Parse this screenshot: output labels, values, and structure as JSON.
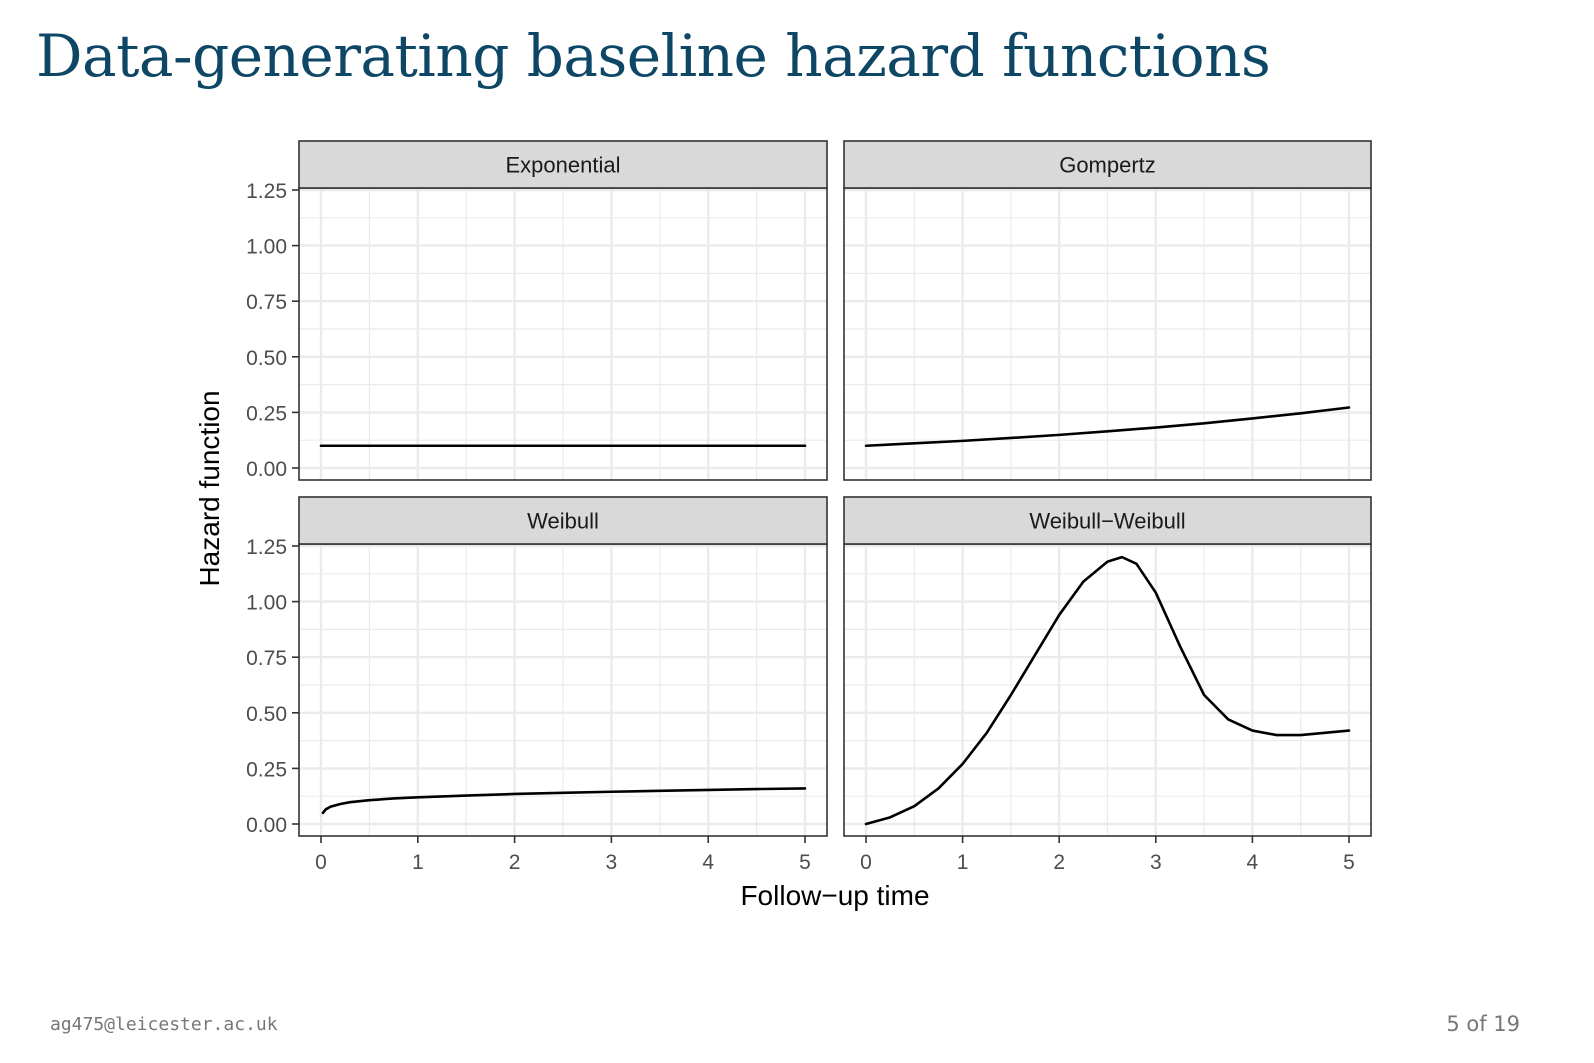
{
  "slide": {
    "title": "Data-generating baseline hazard functions",
    "footer_email": "ag475@leicester.ac.uk",
    "page_label": "5 of 19"
  },
  "chart_data": {
    "type": "line",
    "layout": "facet-grid-2x2",
    "xlabel": "Follow−up time",
    "ylabel": "Hazard function",
    "xlim": [
      0,
      5
    ],
    "ylim": [
      0,
      1.25
    ],
    "x_ticks": [
      "0",
      "1",
      "2",
      "3",
      "4",
      "5"
    ],
    "y_ticks": [
      "0.00",
      "0.25",
      "0.50",
      "0.75",
      "1.00",
      "1.25"
    ],
    "grid": true,
    "line_color": "#000000",
    "strip_fill": "#d9d9d9",
    "grid_color": "#ebebeb",
    "panels": [
      {
        "name": "Exponential",
        "x": [
          0,
          0.5,
          1,
          1.5,
          2,
          2.5,
          3,
          3.5,
          4,
          4.5,
          5
        ],
        "y": [
          0.1,
          0.1,
          0.1,
          0.1,
          0.1,
          0.1,
          0.1,
          0.1,
          0.1,
          0.1,
          0.1
        ]
      },
      {
        "name": "Gompertz",
        "x": [
          0,
          0.5,
          1,
          1.5,
          2,
          2.5,
          3,
          3.5,
          4,
          4.5,
          5
        ],
        "y": [
          0.1,
          0.111,
          0.122,
          0.135,
          0.149,
          0.165,
          0.182,
          0.201,
          0.223,
          0.246,
          0.272
        ]
      },
      {
        "name": "Weibull",
        "x": [
          0.02,
          0.05,
          0.1,
          0.2,
          0.3,
          0.5,
          0.75,
          1,
          1.5,
          2,
          2.5,
          3,
          3.5,
          4,
          4.5,
          5
        ],
        "y": [
          0.05,
          0.066,
          0.078,
          0.09,
          0.098,
          0.107,
          0.115,
          0.12,
          0.128,
          0.135,
          0.14,
          0.145,
          0.149,
          0.153,
          0.157,
          0.16
        ]
      },
      {
        "name": "Weibull−Weibull",
        "x": [
          0,
          0.25,
          0.5,
          0.75,
          1,
          1.25,
          1.5,
          1.75,
          2,
          2.25,
          2.5,
          2.65,
          2.8,
          3,
          3.25,
          3.5,
          3.75,
          4,
          4.25,
          4.5,
          4.75,
          5
        ],
        "y": [
          0.0,
          0.03,
          0.08,
          0.16,
          0.27,
          0.41,
          0.58,
          0.76,
          0.94,
          1.09,
          1.18,
          1.2,
          1.17,
          1.04,
          0.8,
          0.58,
          0.47,
          0.42,
          0.4,
          0.4,
          0.41,
          0.42
        ]
      }
    ]
  }
}
